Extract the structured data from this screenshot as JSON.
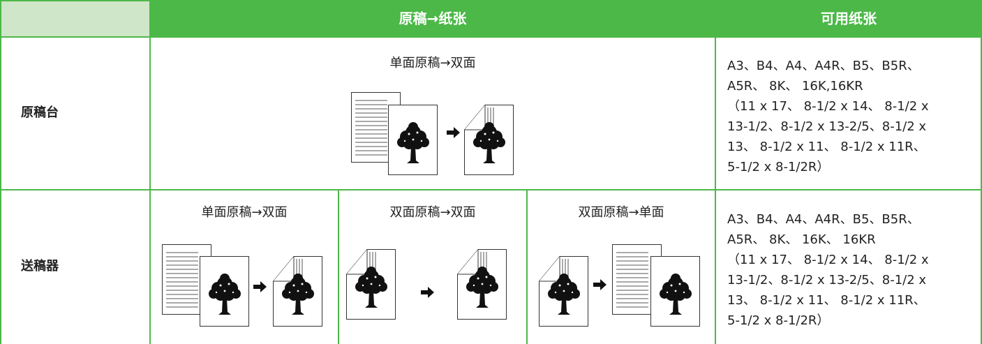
{
  "table": {
    "header": [
      "原稿→纸张",
      "可用纸张"
    ],
    "rows": [
      {
        "label": "原稿台",
        "modes": [
          "单面原稿→双面"
        ],
        "paper": [
          "A3、B4、A4、A4R、B5、B5R、",
          "A5R、 8K、 16K,16KR",
          "（11 x 17、 8-1/2 x 14、 8-1/2 x",
          "13-1/2、8-1/2 x 13-2/5、8-1/2 x",
          "13、 8-1/2 x 11、 8-1/2 x 11R、",
          "5-1/2 x 8-1/2R）"
        ]
      },
      {
        "label": "送稿器",
        "modes": [
          "单面原稿→双面",
          "双面原稿→双面",
          "双面原稿→单面"
        ],
        "paper": [
          "A3、B4、A4、A4R、B5、B5R、",
          "A5R、 8K、 16K、 16KR",
          "（11 x 17、 8-1/2 x 14、 8-1/2 x",
          "13-1/2、8-1/2 x 13-2/5、8-1/2 x",
          "13、 8-1/2 x 11、 8-1/2 x 11R、",
          "5-1/2 x 8-1/2R）"
        ]
      }
    ]
  }
}
